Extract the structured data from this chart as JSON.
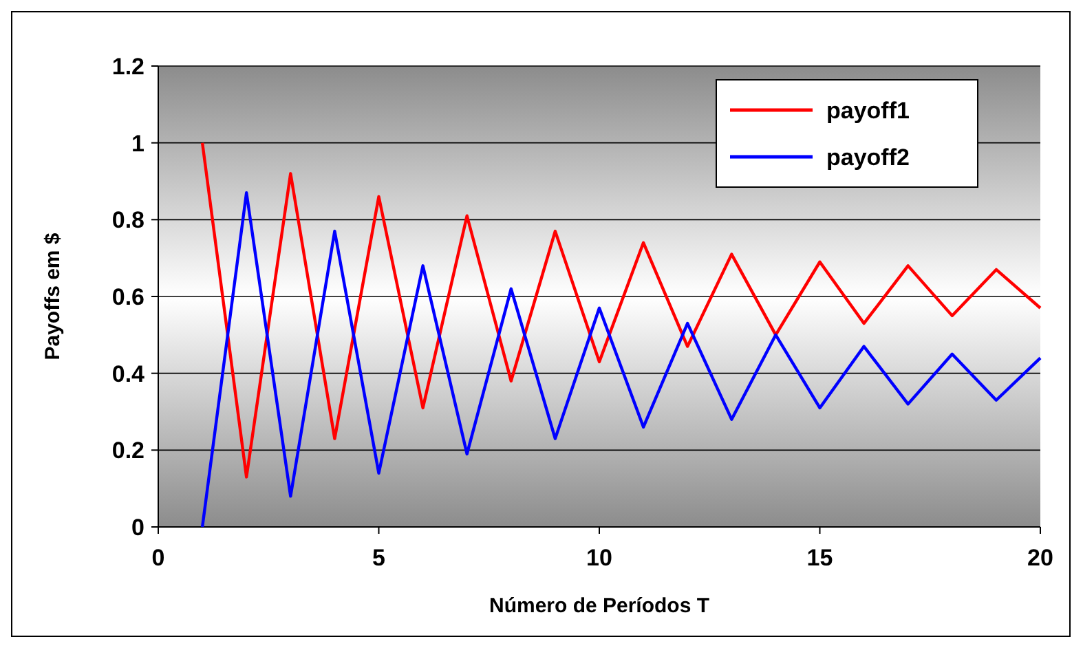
{
  "chart_data": {
    "type": "line",
    "xlabel": "Número de Períodos T",
    "ylabel": "Payoffs em $",
    "x": [
      1,
      2,
      3,
      4,
      5,
      6,
      7,
      8,
      9,
      10,
      11,
      12,
      13,
      14,
      15,
      16,
      17,
      18,
      19,
      20
    ],
    "xlim": [
      0,
      20
    ],
    "xticks": [
      0,
      5,
      10,
      15,
      20
    ],
    "ylim": [
      0,
      1.2
    ],
    "yticks": [
      0,
      0.2,
      0.4,
      0.6,
      0.8,
      1,
      1.2
    ],
    "grid": "y",
    "legend": "top",
    "line_style": "solid",
    "series": [
      {
        "name": "payoff1",
        "color": "#ff0000",
        "values": [
          1.0,
          0.13,
          0.92,
          0.23,
          0.86,
          0.31,
          0.81,
          0.38,
          0.77,
          0.43,
          0.74,
          0.47,
          0.71,
          0.5,
          0.69,
          0.53,
          0.68,
          0.55,
          0.67,
          0.57
        ]
      },
      {
        "name": "payoff2",
        "color": "#0000ff",
        "values": [
          0,
          0.87,
          0.08,
          0.77,
          0.14,
          0.68,
          0.19,
          0.62,
          0.23,
          0.57,
          0.26,
          0.53,
          0.28,
          0.5,
          0.31,
          0.47,
          0.32,
          0.45,
          0.33,
          0.44
        ]
      }
    ]
  }
}
